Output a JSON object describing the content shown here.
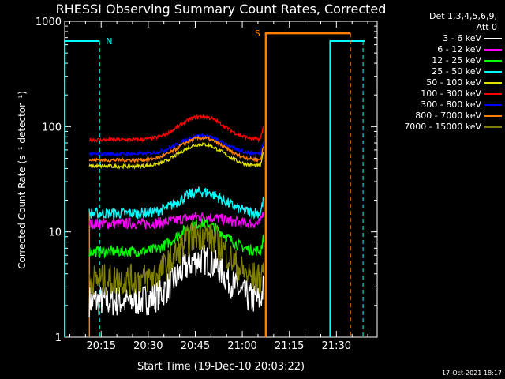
{
  "chart_data": {
    "type": "line",
    "title": "RHESSI Observing Summary Count Rates, Corrected",
    "xlabel": "Start Time (19-Dec-10 20:03:22)",
    "ylabel": "Corrected Count Rate (s⁻¹ detector⁻¹)",
    "yscale": "log",
    "ylim": [
      1,
      1000
    ],
    "xlim_minutes_utc": [
      "20:03",
      "21:43"
    ],
    "x_ticks": [
      "20:15",
      "20:30",
      "20:45",
      "21:00",
      "21:15",
      "21:30"
    ],
    "y_ticks": [
      "1",
      "10",
      "100",
      "1000"
    ],
    "legend_header": [
      "Det 1,3,4,5,6,9,",
      "Att 0"
    ],
    "footer_date": "17-Oct-2021 18:17",
    "flags": [
      {
        "label": "N",
        "color": "#00ffff"
      },
      {
        "label": "S",
        "color": "#ff8000"
      }
    ],
    "series": [
      {
        "name": "3 - 6 keV",
        "color": "#ffffff",
        "base": 2.2,
        "peak": 5.5
      },
      {
        "name": "6 - 12 keV",
        "color": "#ff00ff",
        "base": 12,
        "peak": 14
      },
      {
        "name": "12 - 25 keV",
        "color": "#00ff00",
        "base": 6.5,
        "peak": 12
      },
      {
        "name": "25 - 50 keV",
        "color": "#00ffff",
        "base": 15,
        "peak": 24
      },
      {
        "name": "50 - 100 keV",
        "color": "#e0e000",
        "base": 42,
        "peak": 68
      },
      {
        "name": "100 - 300 keV",
        "color": "#ff0000",
        "base": 75,
        "peak": 125
      },
      {
        "name": "300 - 800 keV",
        "color": "#0000ff",
        "base": 55,
        "peak": 82
      },
      {
        "name": "800 - 7000 keV",
        "color": "#ff8000",
        "base": 48,
        "peak": 78
      },
      {
        "name": "7000 - 15000 keV",
        "color": "#808000",
        "base": 3.5,
        "peak": 9.5
      }
    ]
  }
}
